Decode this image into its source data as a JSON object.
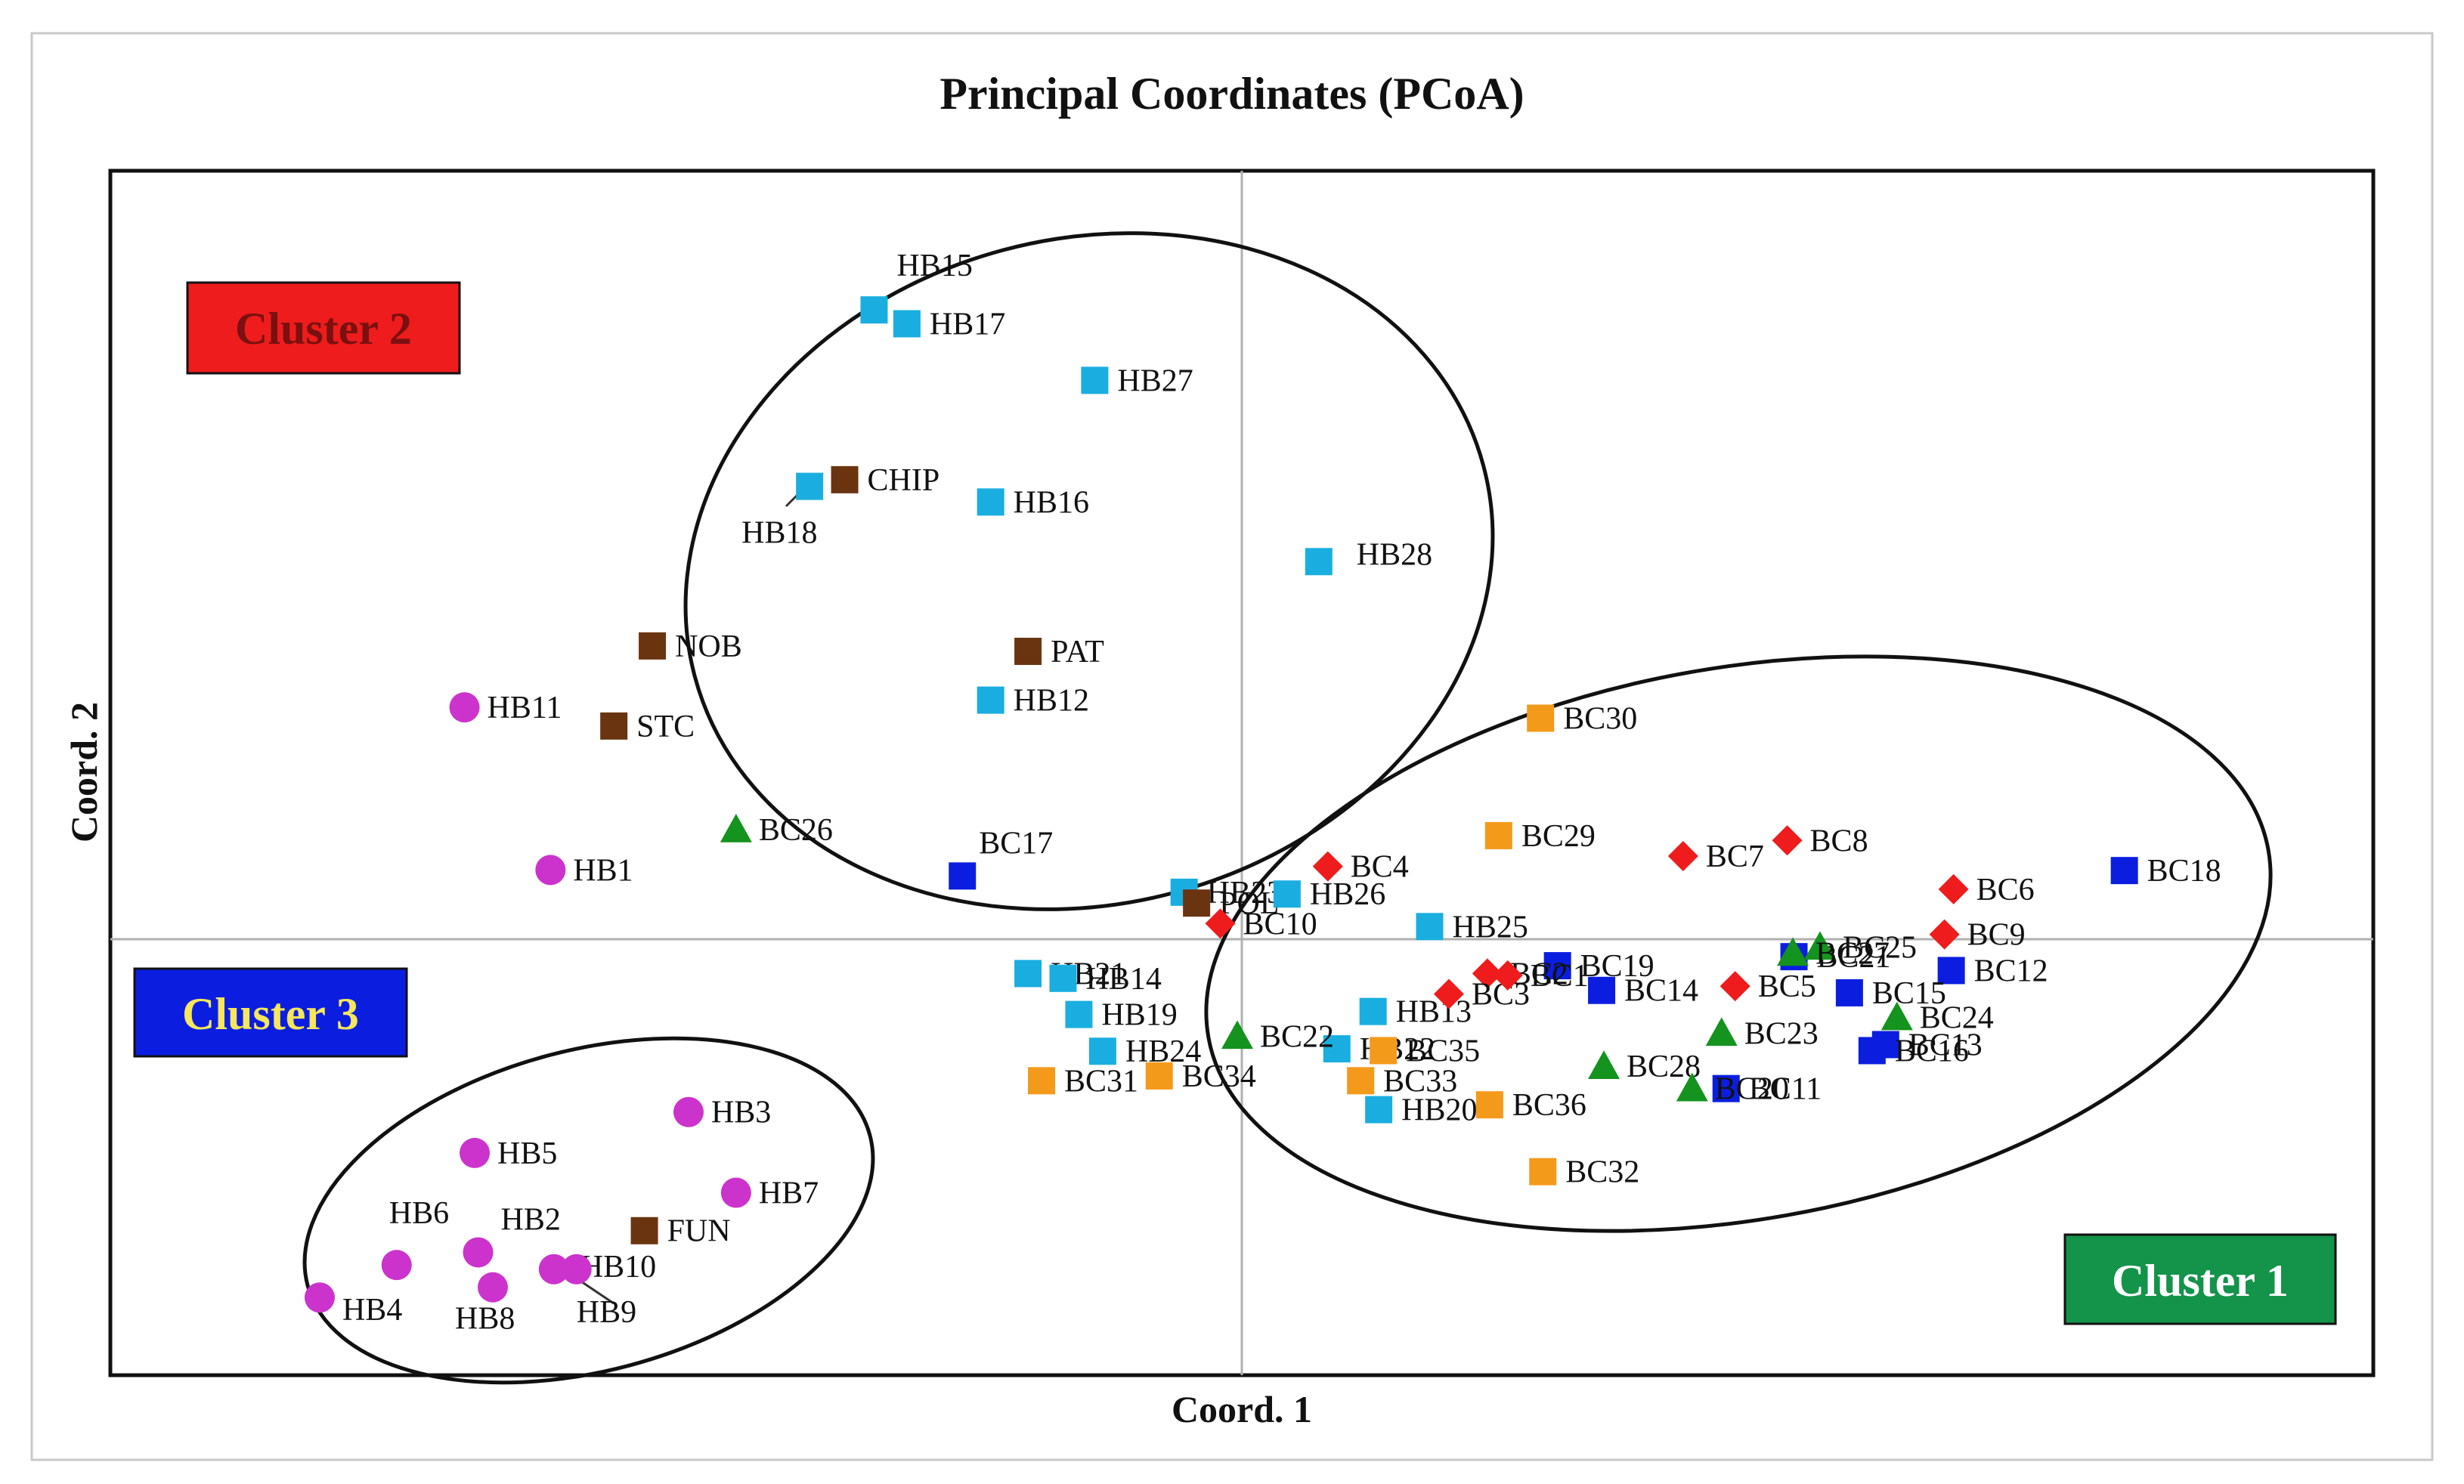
{
  "chart_data": {
    "type": "scatter",
    "title": "Principal Coordinates (PCoA)",
    "xlabel": "Coord. 1",
    "ylabel": "Coord. 2",
    "xlim": [
      -1,
      1
    ],
    "ylim": [
      -1,
      1
    ],
    "axes_lines_at_zero": true,
    "series": [
      {
        "name": "HB",
        "marker": "circle",
        "color": "#cc33cc",
        "points": [
          {
            "label": "HB11",
            "x": -0.687,
            "y": 0.385
          },
          {
            "label": "HB1",
            "x": -0.611,
            "y": 0.115
          },
          {
            "label": "HB3",
            "x": -0.489,
            "y": -0.287
          },
          {
            "label": "HB5",
            "x": -0.678,
            "y": -0.355
          },
          {
            "label": "HB7",
            "x": -0.447,
            "y": -0.421
          },
          {
            "label": "HB6",
            "x": -0.747,
            "y": -0.541
          },
          {
            "label": "HB2",
            "x": -0.675,
            "y": -0.52
          },
          {
            "label": "HB10",
            "x": -0.608,
            "y": -0.548
          },
          {
            "label": "HB4",
            "x": -0.815,
            "y": -0.595
          },
          {
            "label": "HB8",
            "x": -0.662,
            "y": -0.578
          },
          {
            "label": "HB9",
            "x": -0.588,
            "y": -0.548
          }
        ]
      },
      {
        "name": "HB",
        "marker": "square",
        "color": "#1aaee0",
        "points": [
          {
            "label": "HB15",
            "x": -0.325,
            "y": 1.045
          },
          {
            "label": "HB17",
            "x": -0.296,
            "y": 1.022
          },
          {
            "label": "HB27",
            "x": -0.13,
            "y": 0.928
          },
          {
            "label": "HB18",
            "x": -0.382,
            "y": 0.752
          },
          {
            "label": "HB16",
            "x": -0.222,
            "y": 0.726
          },
          {
            "label": "HB28",
            "x": 0.068,
            "y": 0.627
          },
          {
            "label": "HB12",
            "x": -0.222,
            "y": 0.397
          },
          {
            "label": "HB23",
            "x": -0.051,
            "y": 0.078
          },
          {
            "label": "HB26",
            "x": 0.04,
            "y": 0.075
          },
          {
            "label": "HB25",
            "x": 0.166,
            "y": 0.021
          },
          {
            "label": "HB21",
            "x": -0.189,
            "y": -0.057
          },
          {
            "label": "HB14",
            "x": -0.158,
            "y": -0.065
          },
          {
            "label": "HB19",
            "x": -0.144,
            "y": -0.125
          },
          {
            "label": "HB13",
            "x": 0.116,
            "y": -0.12
          },
          {
            "label": "HB24",
            "x": -0.123,
            "y": -0.186
          },
          {
            "label": "HB22",
            "x": 0.084,
            "y": -0.182
          },
          {
            "label": "HB20",
            "x": 0.121,
            "y": -0.283
          }
        ]
      },
      {
        "name": "Reference",
        "marker": "square",
        "color": "#6b3410",
        "points": [
          {
            "label": "CHIP",
            "x": -0.351,
            "y": 0.763
          },
          {
            "label": "NOB",
            "x": -0.521,
            "y": 0.487
          },
          {
            "label": "PAT",
            "x": -0.189,
            "y": 0.478
          },
          {
            "label": "STC",
            "x": -0.555,
            "y": 0.354
          },
          {
            "label": "POL",
            "x": -0.04,
            "y": 0.06
          },
          {
            "label": "FUN",
            "x": -0.528,
            "y": -0.484
          }
        ]
      },
      {
        "name": "BC",
        "marker": "square",
        "color": "#f49a1b",
        "points": [
          {
            "label": "BC30",
            "x": 0.264,
            "y": 0.367
          },
          {
            "label": "BC29",
            "x": 0.227,
            "y": 0.172
          },
          {
            "label": "BC35",
            "x": 0.125,
            "y": -0.185
          },
          {
            "label": "BC31",
            "x": -0.177,
            "y": -0.235
          },
          {
            "label": "BC34",
            "x": -0.073,
            "y": -0.227
          },
          {
            "label": "BC33",
            "x": 0.105,
            "y": -0.235
          },
          {
            "label": "BC36",
            "x": 0.219,
            "y": -0.275
          },
          {
            "label": "BC32",
            "x": 0.266,
            "y": -0.386
          }
        ]
      },
      {
        "name": "BC",
        "marker": "square",
        "color": "#0b1ee0",
        "points": [
          {
            "label": "BC17",
            "x": -0.247,
            "y": 0.105
          },
          {
            "label": "BC18",
            "x": 0.78,
            "y": 0.114
          },
          {
            "label": "BC19",
            "x": 0.279,
            "y": -0.044
          },
          {
            "label": "BC14",
            "x": 0.318,
            "y": -0.085
          },
          {
            "label": "BC21",
            "x": 0.488,
            "y": -0.029
          },
          {
            "label": "BC12",
            "x": 0.627,
            "y": -0.052
          },
          {
            "label": "BC15",
            "x": 0.537,
            "y": -0.089
          },
          {
            "label": "BC13",
            "x": 0.569,
            "y": -0.175
          },
          {
            "label": "BC16",
            "x": 0.557,
            "y": -0.185
          },
          {
            "label": "BC11",
            "x": 0.428,
            "y": -0.248
          }
        ]
      },
      {
        "name": "BC",
        "marker": "diamond",
        "color": "#ee1c1c",
        "points": [
          {
            "label": "BC4",
            "x": 0.076,
            "y": 0.121
          },
          {
            "label": "BC8",
            "x": 0.482,
            "y": 0.164
          },
          {
            "label": "BC7",
            "x": 0.39,
            "y": 0.138
          },
          {
            "label": "BC6",
            "x": 0.629,
            "y": 0.083
          },
          {
            "label": "BC9",
            "x": 0.621,
            "y": 0.008
          },
          {
            "label": "BC10",
            "x": -0.019,
            "y": 0.026
          },
          {
            "label": "BC2",
            "x": 0.217,
            "y": -0.057
          },
          {
            "label": "BC3",
            "x": 0.183,
            "y": -0.091
          },
          {
            "label": "BC1",
            "x": 0.235,
            "y": -0.06
          },
          {
            "label": "BC5",
            "x": 0.436,
            "y": -0.078
          }
        ]
      },
      {
        "name": "BC",
        "marker": "triangle",
        "color": "#14931e",
        "points": [
          {
            "label": "BC26",
            "x": -0.447,
            "y": 0.182
          },
          {
            "label": "BC22",
            "x": -0.004,
            "y": -0.161
          },
          {
            "label": "BC23",
            "x": 0.424,
            "y": -0.156
          },
          {
            "label": "BC24",
            "x": 0.579,
            "y": -0.13
          },
          {
            "label": "BC25",
            "x": 0.511,
            "y": -0.013
          },
          {
            "label": "BC27",
            "x": 0.487,
            "y": -0.023
          },
          {
            "label": "BC28",
            "x": 0.32,
            "y": -0.211
          },
          {
            "label": "BC20",
            "x": 0.398,
            "y": -0.248
          }
        ]
      }
    ],
    "annotations": [
      {
        "label": "Cluster 1",
        "color": "#14934a",
        "text_color": "#ffffff"
      },
      {
        "label": "Cluster 2",
        "color": "#ee1c1c",
        "text_color": "#7a1010"
      },
      {
        "label": "Cluster 3",
        "color": "#0b1ee0",
        "text_color": "#f5e65a"
      }
    ]
  }
}
